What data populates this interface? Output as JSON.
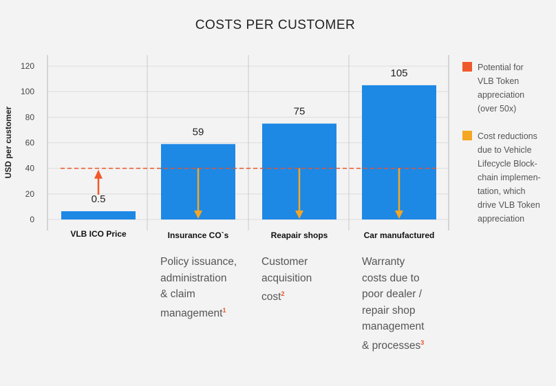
{
  "chart_data": {
    "type": "bar",
    "title": "COSTS PER CUSTOMER",
    "ylabel": "USD per customer",
    "xlabel": "",
    "ylim": [
      0,
      120
    ],
    "yticks": [
      0,
      20,
      40,
      60,
      80,
      100,
      120
    ],
    "categories": [
      "VLB ICO Price",
      "Insurance CO`s",
      "Reapair shops",
      "Car manufactured"
    ],
    "values": [
      0.5,
      59,
      75,
      105
    ],
    "value_labels": [
      "0.5",
      "59",
      "75",
      "105"
    ],
    "reference_line": {
      "value": 40,
      "style": "dashed"
    },
    "grid": "vertical",
    "bar_color": "#1e88e5",
    "arrows": [
      {
        "category": "VLB ICO Price",
        "direction": "up",
        "from": 20,
        "to": 40,
        "color": "#f0592b"
      },
      {
        "category": "Insurance CO`s",
        "direction": "down",
        "from": 40,
        "to": 0,
        "color": "#f5a623"
      },
      {
        "category": "Reapair shops",
        "direction": "down",
        "from": 40,
        "to": 0,
        "color": "#f5a623"
      },
      {
        "category": "Car manufactured",
        "direction": "down",
        "from": 40,
        "to": 0,
        "color": "#f5a623"
      }
    ],
    "legend": [
      {
        "color": "#f0592b",
        "lines": [
          "Potential for",
          "VLB Token",
          "appreciation",
          "(over 50x)"
        ]
      },
      {
        "color": "#f5a623",
        "lines": [
          "Cost reductions",
          "due to Vehicle",
          "Lifecycle Block-",
          "chain implemen-",
          "tation, which",
          "drive VLB Token",
          "appreciation"
        ]
      }
    ],
    "legend_position": "right"
  },
  "descriptions": [
    {
      "lines": [
        "Policy issuance,",
        "administration",
        "& claim",
        "management"
      ],
      "footnote": "1"
    },
    {
      "lines": [
        "Customer",
        "acquisition",
        "cost"
      ],
      "footnote": "2"
    },
    {
      "lines": [
        "Warranty",
        "costs due to",
        "poor dealer /",
        "repair shop",
        "management",
        "& processes"
      ],
      "footnote": "3"
    }
  ]
}
